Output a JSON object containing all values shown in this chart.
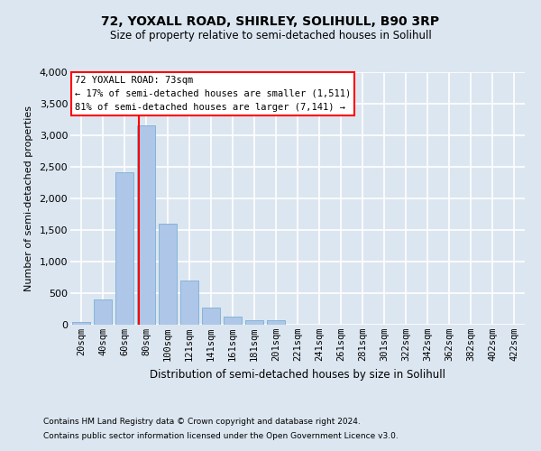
{
  "title": "72, YOXALL ROAD, SHIRLEY, SOLIHULL, B90 3RP",
  "subtitle": "Size of property relative to semi-detached houses in Solihull",
  "xlabel": "Distribution of semi-detached houses by size in Solihull",
  "ylabel": "Number of semi-detached properties",
  "footnote1": "Contains HM Land Registry data © Crown copyright and database right 2024.",
  "footnote2": "Contains public sector information licensed under the Open Government Licence v3.0.",
  "categories": [
    "20sqm",
    "40sqm",
    "60sqm",
    "80sqm",
    "100sqm",
    "121sqm",
    "141sqm",
    "161sqm",
    "181sqm",
    "201sqm",
    "221sqm",
    "241sqm",
    "261sqm",
    "281sqm",
    "301sqm",
    "322sqm",
    "342sqm",
    "362sqm",
    "382sqm",
    "402sqm",
    "422sqm"
  ],
  "values": [
    50,
    400,
    2420,
    3150,
    1600,
    700,
    270,
    130,
    70,
    70,
    0,
    0,
    0,
    0,
    0,
    0,
    0,
    0,
    0,
    0,
    0
  ],
  "bar_color": "#aec6e8",
  "bar_edge_color": "#7aafd4",
  "annotation_text_line1": "72 YOXALL ROAD: 73sqm",
  "annotation_text_line2": "← 17% of semi-detached houses are smaller (1,511)",
  "annotation_text_line3": "81% of semi-detached houses are larger (7,141) →",
  "annotation_box_color": "white",
  "annotation_box_edge": "red",
  "vline_color": "red",
  "ylim": [
    0,
    4000
  ],
  "yticks": [
    0,
    500,
    1000,
    1500,
    2000,
    2500,
    3000,
    3500,
    4000
  ],
  "background_color": "#dce6f0",
  "plot_bg_color": "#dce6f0",
  "grid_color": "white",
  "vline_x": 2.65
}
